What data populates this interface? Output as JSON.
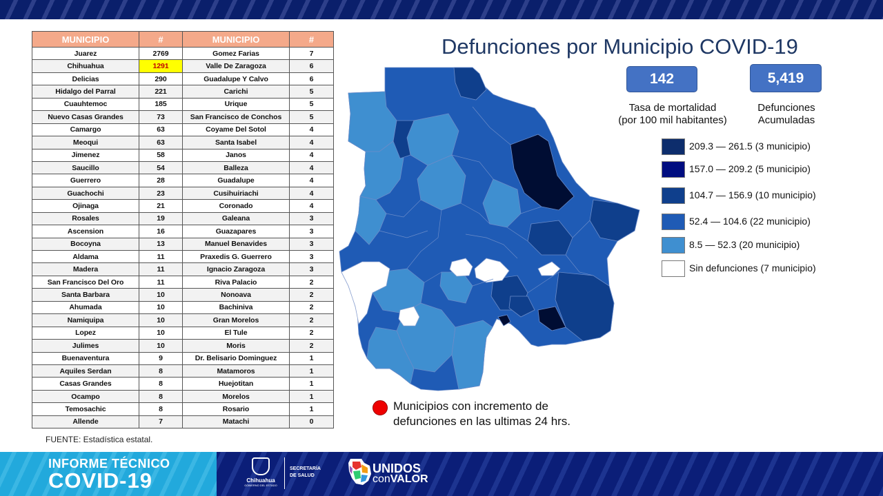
{
  "table": {
    "headers": [
      "MUNICIPIO",
      "#",
      "MUNICIPIO",
      "#"
    ],
    "rows": [
      [
        "Juarez",
        "2769",
        "Gomez Farias",
        "7"
      ],
      [
        "Chihuahua",
        "1291",
        "Valle De Zaragoza",
        "6"
      ],
      [
        "Delicias",
        "290",
        "Guadalupe Y Calvo",
        "6"
      ],
      [
        "Hidalgo del Parral",
        "221",
        "Carichi",
        "5"
      ],
      [
        "Cuauhtemoc",
        "185",
        "Urique",
        "5"
      ],
      [
        "Nuevo Casas Grandes",
        "73",
        "San Francisco de Conchos",
        "5"
      ],
      [
        "Camargo",
        "63",
        "Coyame Del Sotol",
        "4"
      ],
      [
        "Meoqui",
        "63",
        "Santa Isabel",
        "4"
      ],
      [
        "Jimenez",
        "58",
        "Janos",
        "4"
      ],
      [
        "Saucillo",
        "54",
        "Balleza",
        "4"
      ],
      [
        "Guerrero",
        "28",
        "Guadalupe",
        "4"
      ],
      [
        "Guachochi",
        "23",
        "Cusihuiriachi",
        "4"
      ],
      [
        "Ojinaga",
        "21",
        "Coronado",
        "4"
      ],
      [
        "Rosales",
        "19",
        "Galeana",
        "3"
      ],
      [
        "Ascension",
        "16",
        "Guazapares",
        "3"
      ],
      [
        "Bocoyna",
        "13",
        "Manuel Benavides",
        "3"
      ],
      [
        "Aldama",
        "11",
        "Praxedis G. Guerrero",
        "3"
      ],
      [
        "Madera",
        "11",
        "Ignacio Zaragoza",
        "3"
      ],
      [
        "San Francisco Del Oro",
        "11",
        "Riva Palacio",
        "2"
      ],
      [
        "Santa Barbara",
        "10",
        "Nonoava",
        "2"
      ],
      [
        "Ahumada",
        "10",
        "Bachiniva",
        "2"
      ],
      [
        "Namiquipa",
        "10",
        "Gran Morelos",
        "2"
      ],
      [
        "Lopez",
        "10",
        "El Tule",
        "2"
      ],
      [
        "Julimes",
        "10",
        "Moris",
        "2"
      ],
      [
        "Buenaventura",
        "9",
        "Dr. Belisario Dominguez",
        "1"
      ],
      [
        "Aquiles Serdan",
        "8",
        "Matamoros",
        "1"
      ],
      [
        "Casas Grandes",
        "8",
        "Huejotitan",
        "1"
      ],
      [
        "Ocampo",
        "8",
        "Morelos",
        "1"
      ],
      [
        "Temosachic",
        "8",
        "Rosario",
        "1"
      ],
      [
        "Allende",
        "7",
        "Matachi",
        "0"
      ]
    ],
    "highlight_row": 1,
    "highlight_color": "#ffff00",
    "header_color": "#f4a98a"
  },
  "source_note": "FUENTE:  Estadística estatal.",
  "title": "Defunciones por Municipio COVID-19",
  "stats": {
    "mortality_value": "142",
    "mortality_label_1": "Tasa de mortalidad",
    "mortality_label_2": "(por 100 mil habitantes)",
    "deaths_value": "5,419",
    "deaths_label_1": "Defunciones",
    "deaths_label_2": "Acumuladas"
  },
  "legend": [
    {
      "label": "209.3 — 261.5 (3 municipio)",
      "color": "#0d2d6c"
    },
    {
      "label": "157.0 — 209.2 (5 municipio)",
      "color": "#000d80"
    },
    {
      "label": "104.7 — 156.9 (10 municipio)",
      "color": "#0f3f8c"
    },
    {
      "label": "52.4 — 104.6 (22 municipio)",
      "color": "#1f5bb5"
    },
    {
      "label": "8.5 — 52.3 (20 municipio)",
      "color": "#3f8fd0"
    },
    {
      "label": "Sin defunciones (7 municipio)",
      "color": "#ffffff"
    }
  ],
  "note": {
    "line1": "Municipios con incremento de",
    "line2": "defunciones en las ultimas 24 hrs."
  },
  "footer": {
    "report_line1": "INFORME TÉCNICO",
    "report_line2": "COVID-19",
    "chihuahua_logo_text": "Chihuahua",
    "chihuahua_logo_sub": "GOBIERNO DEL ESTADO",
    "secretaria_line1": "SECRETARÍA",
    "secretaria_line2": "DE SALUD",
    "unidos_word": "UNIDOS",
    "con_word": "con",
    "valor_word": "VALOR"
  }
}
